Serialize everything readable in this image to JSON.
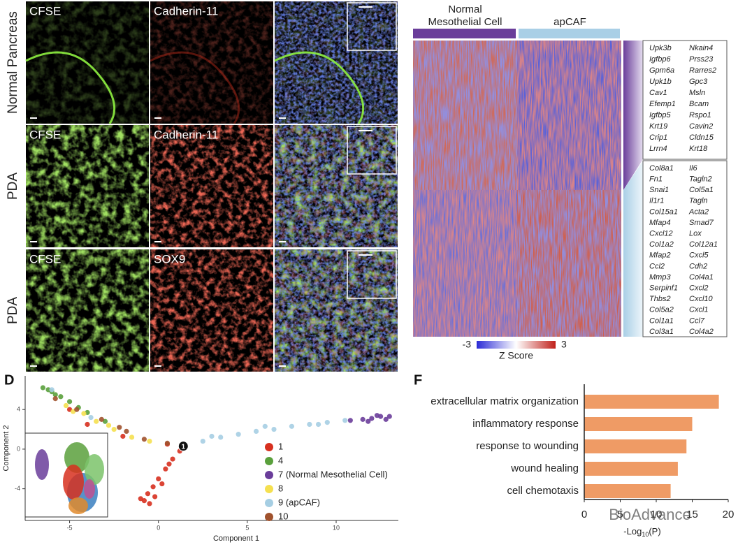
{
  "microscopy": {
    "rows": [
      {
        "label": "Normal Pancreas",
        "channels": [
          "CFSE",
          "Cadherin-11"
        ]
      },
      {
        "label": "PDA",
        "channels": [
          "CFSE",
          "Cadherin-11"
        ]
      },
      {
        "label": "PDA",
        "channels": [
          "CFSE",
          "SOX9"
        ]
      }
    ]
  },
  "heatmap": {
    "groups": [
      {
        "lines": [
          "Normal",
          "Mesothelial Cell"
        ],
        "color": "#6a3d9a"
      },
      {
        "lines": [
          "apCAF"
        ],
        "color": "#a9cfe6"
      }
    ],
    "genes_upper": [
      [
        "Upk3b",
        "Nkain4"
      ],
      [
        "Igfbp6",
        "Prss23"
      ],
      [
        "Gpm6a",
        "Rarres2"
      ],
      [
        "Upk1b",
        "Gpc3"
      ],
      [
        "Cav1",
        "Msln"
      ],
      [
        "Efemp1",
        "Bcam"
      ],
      [
        "Igfbp5",
        "Rspo1"
      ],
      [
        "Krt19",
        "Cavin2"
      ],
      [
        "Crip1",
        "Cldn15"
      ],
      [
        "Lrrn4",
        "Krt18"
      ]
    ],
    "genes_lower": [
      [
        "Col8a1",
        "Il6"
      ],
      [
        "Fn1",
        "Tagln2"
      ],
      [
        "Snai1",
        "Col5a1"
      ],
      [
        "Il1r1",
        "Tagln"
      ],
      [
        "Col15a1",
        "Acta2"
      ],
      [
        "Mfap4",
        "Smad7"
      ],
      [
        "Cxcl12",
        "Lox"
      ],
      [
        "Col1a2",
        "Col12a1"
      ],
      [
        "Mfap2",
        "Cxcl5"
      ],
      [
        "Ccl2",
        "Cdh2"
      ],
      [
        "Mmp3",
        "Col4a1"
      ],
      [
        "Serpinf1",
        "Cxcl2"
      ],
      [
        "Thbs2",
        "Cxcl10"
      ],
      [
        "Col5a2",
        "Cxcl1"
      ],
      [
        "Col1a1",
        "Ccl7"
      ],
      [
        "Col3a1",
        "Col4a2"
      ]
    ],
    "colorbar": {
      "ticks": [
        -3,
        3
      ],
      "label": "Z Score"
    }
  },
  "chart_data": [
    {
      "type": "scatter",
      "panel_label": "D",
      "xlabel": "Component 1",
      "ylabel": "Component 2",
      "xlim": [
        -7.5,
        13.5
      ],
      "ylim": [
        -7.2,
        7.4
      ],
      "xticks": [
        -5,
        0,
        5,
        10
      ],
      "yticks": [
        -4,
        0,
        4
      ],
      "series": [
        {
          "name": "1",
          "color": "#d7301f",
          "x": [
            1.2,
            0.8,
            0.4,
            0,
            -0.3,
            -0.6,
            -0.8,
            -0.5,
            -0.2,
            0.2,
            -1,
            0.6,
            -4,
            -2,
            -5,
            0.5
          ],
          "y": [
            -0.2,
            -1,
            -2,
            -3,
            -3.8,
            -4.5,
            -5.2,
            -5.5,
            -4.8,
            -3.5,
            -5,
            -1.5,
            2.5,
            1.3,
            4,
            0.5
          ]
        },
        {
          "name": "4",
          "color": "#5aa03c",
          "x": [
            -6.5,
            -6,
            -5.5,
            -5,
            -4.5,
            -4,
            -6.2,
            -3,
            -5.8
          ],
          "y": [
            6.2,
            5.8,
            5.3,
            4.8,
            4.2,
            3.7,
            6,
            2.8,
            5.5
          ]
        },
        {
          "name": "7 (Normal Mesothelial Cell)",
          "color": "#6a3d9a",
          "x": [
            11.5,
            12,
            12.5,
            13,
            11.8,
            12.3,
            10.8,
            12.8
          ],
          "y": [
            3.0,
            3.1,
            3.3,
            3.3,
            2.8,
            3.4,
            2.9,
            3.0
          ]
        },
        {
          "name": "8",
          "color": "#f5e050",
          "x": [
            -5.2,
            -4.2,
            -3.5,
            -2.5,
            -1.5,
            -0.5,
            -4.8,
            -2.8
          ],
          "y": [
            4.4,
            3.6,
            2.8,
            2.0,
            1.2,
            0.8,
            3.8,
            2.4
          ]
        },
        {
          "name": "9 (apCAF)",
          "color": "#a6cee3",
          "x": [
            2.5,
            3.5,
            4.5,
            5.5,
            6.5,
            7.5,
            8.5,
            9.5,
            10.5,
            -6,
            -3.8,
            3,
            6,
            9
          ],
          "y": [
            0.8,
            1.2,
            1.5,
            1.8,
            2.0,
            2.3,
            2.5,
            2.7,
            2.9,
            6,
            3.2,
            1.3,
            2.3,
            2.5
          ]
        },
        {
          "name": "10",
          "color": "#a0522d",
          "x": [
            -5.8,
            -4.6,
            -3.2,
            -1.8,
            -0.8,
            0.5,
            -2.2
          ],
          "y": [
            5.1,
            4.0,
            3.0,
            1.8,
            1.0,
            0.6,
            2.2
          ]
        }
      ],
      "node": {
        "text": "1",
        "x": 1.4,
        "y": 0.3
      }
    },
    {
      "type": "bar",
      "panel_label": "F",
      "categories": [
        "extracellular matrix organization",
        "inflammatory response",
        "response to wounding",
        "wound healing",
        "cell chemotaxis"
      ],
      "values": [
        18.7,
        15,
        14.2,
        13,
        12
      ],
      "color": "#ef9b65",
      "xlim": [
        0,
        20
      ],
      "xticks": [
        0,
        5,
        10,
        15,
        20
      ],
      "xlabel": {
        "main": "-Log",
        "sub": "10",
        "tail": "(P)"
      }
    }
  ],
  "watermark": "BioAdvance"
}
